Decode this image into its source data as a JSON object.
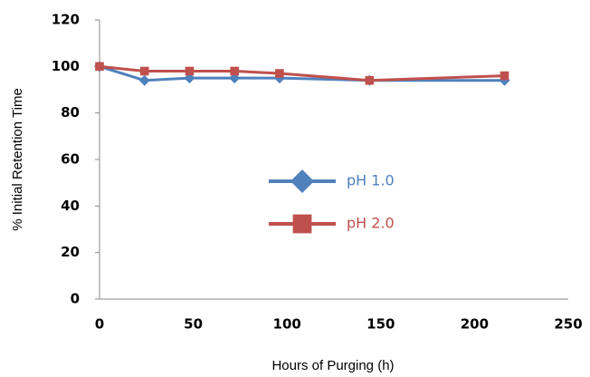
{
  "chart_data": {
    "type": "line",
    "xlabel": "Hours of Purging (h)",
    "ylabel": "% Initial Retention Time",
    "x": [
      0,
      24,
      48,
      72,
      96,
      144,
      216
    ],
    "series": [
      {
        "name": "pH 1.0",
        "color": "#4f81bd",
        "marker": "diamond",
        "values": [
          100,
          94,
          95,
          95,
          95,
          94,
          94
        ]
      },
      {
        "name": "pH 2.0",
        "color": "#c0504d",
        "marker": "square",
        "values": [
          100,
          98,
          98,
          98,
          97,
          94,
          96
        ]
      }
    ],
    "xlim": [
      0,
      250
    ],
    "xticks": [
      0,
      50,
      100,
      150,
      200,
      250
    ],
    "ylim": [
      0,
      120
    ],
    "yticks": [
      0,
      20,
      40,
      60,
      80,
      100,
      120
    ],
    "grid": false,
    "legend": "center"
  }
}
